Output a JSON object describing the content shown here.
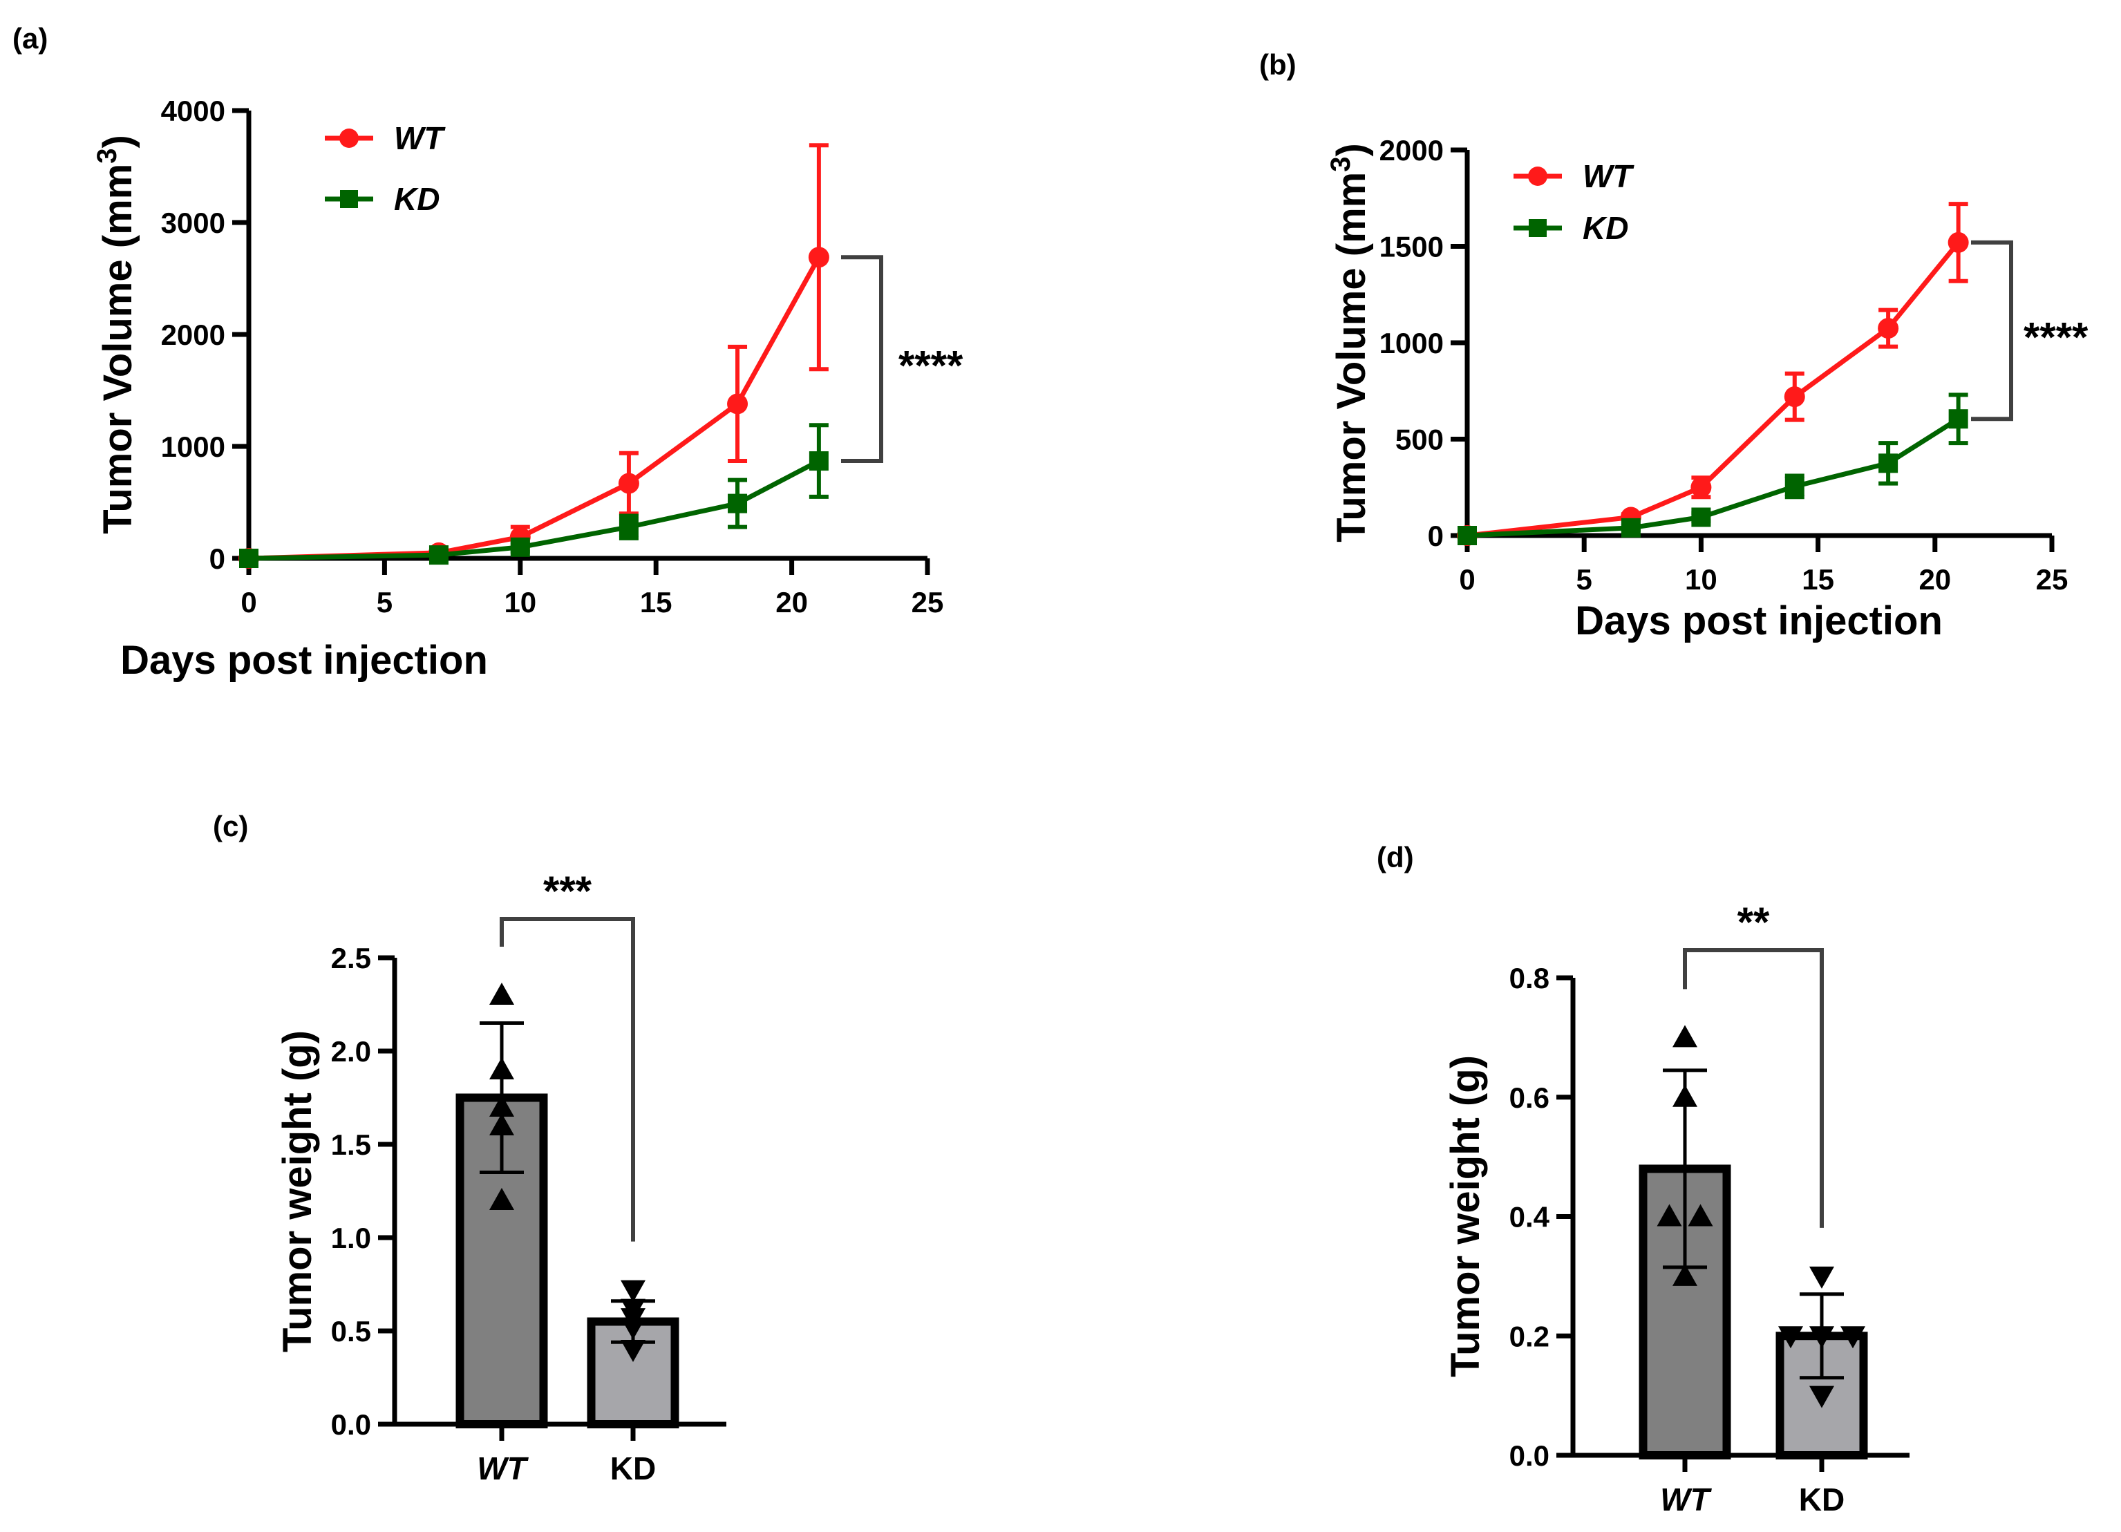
{
  "colors": {
    "wt": "#ff1a1a",
    "kd": "#006400",
    "bar_wt": "#808080",
    "bar_kd": "#a6a6aa",
    "bracket": "#404040"
  },
  "chart_data": [
    {
      "panel": "(a)",
      "type": "line",
      "xlabel": "Days post injection",
      "ylabel": "Tumor Volume (mm",
      "ylabel_sup": "3",
      "ylabel_end": ")",
      "xlim": [
        0,
        25
      ],
      "ylim": [
        0,
        4000
      ],
      "xticks": [
        "0",
        "5",
        "10",
        "15",
        "20",
        "25"
      ],
      "yticks": [
        "0",
        "1000",
        "2000",
        "3000",
        "4000"
      ],
      "legend_position": "top-left",
      "significance": "****",
      "x": [
        0,
        7,
        10,
        14,
        18,
        21
      ],
      "series": [
        {
          "name": "WT",
          "legend_italic": true,
          "marker": "circle",
          "values": [
            0,
            50,
            190,
            670,
            1380,
            2690
          ],
          "error": [
            10,
            20,
            90,
            270,
            510,
            1000
          ]
        },
        {
          "name": "KD",
          "legend_italic": true,
          "marker": "square",
          "values": [
            0,
            30,
            100,
            280,
            490,
            870
          ],
          "error": [
            10,
            15,
            40,
            100,
            210,
            320
          ]
        }
      ]
    },
    {
      "panel": "(b)",
      "type": "line",
      "xlabel": "Days post injection",
      "ylabel": "Tumor Volume (mm",
      "ylabel_sup": "3",
      "ylabel_end": ")",
      "xlim": [
        0,
        25
      ],
      "ylim": [
        0,
        2000
      ],
      "xticks": [
        "0",
        "5",
        "10",
        "15",
        "20",
        "25"
      ],
      "yticks": [
        "0",
        "500",
        "1000",
        "1500",
        "2000"
      ],
      "legend_position": "top-left",
      "significance": "****",
      "x": [
        0,
        7,
        10,
        14,
        18,
        21
      ],
      "series": [
        {
          "name": "WT",
          "legend_italic": false,
          "marker": "circle",
          "values": [
            0,
            95,
            250,
            720,
            1075,
            1520
          ],
          "error": [
            5,
            15,
            50,
            120,
            95,
            200
          ]
        },
        {
          "name": "KD",
          "legend_italic": true,
          "marker": "square",
          "values": [
            0,
            40,
            95,
            255,
            375,
            605
          ],
          "error": [
            5,
            10,
            20,
            55,
            105,
            125
          ]
        }
      ]
    },
    {
      "panel": "(c)",
      "type": "bar",
      "ylabel": "Tumor weight (g)",
      "ylim": [
        0,
        2.5
      ],
      "yticks": [
        "0.0",
        "0.5",
        "1.0",
        "1.5",
        "2.0",
        "2.5"
      ],
      "significance": "***",
      "categories": [
        "WT",
        "KD"
      ],
      "values": [
        1.75,
        0.55
      ],
      "sd": [
        0.4,
        0.11
      ],
      "points": [
        [
          2.3,
          1.9,
          1.7,
          1.6,
          1.2
        ],
        [
          0.72,
          0.62,
          0.57,
          0.52,
          0.4
        ]
      ]
    },
    {
      "panel": "(d)",
      "type": "bar",
      "ylabel": "Tumor weight (g)",
      "ylim": [
        0,
        0.8
      ],
      "yticks": [
        "0.0",
        "0.2",
        "0.4",
        "0.6",
        "0.8"
      ],
      "significance": "**",
      "categories": [
        "WT",
        "KD"
      ],
      "values": [
        0.48,
        0.2
      ],
      "sd": [
        0.165,
        0.07
      ],
      "points": [
        [
          0.7,
          0.6,
          0.4,
          0.4,
          0.3
        ],
        [
          0.3,
          0.2,
          0.2,
          0.2,
          0.1
        ]
      ]
    }
  ]
}
